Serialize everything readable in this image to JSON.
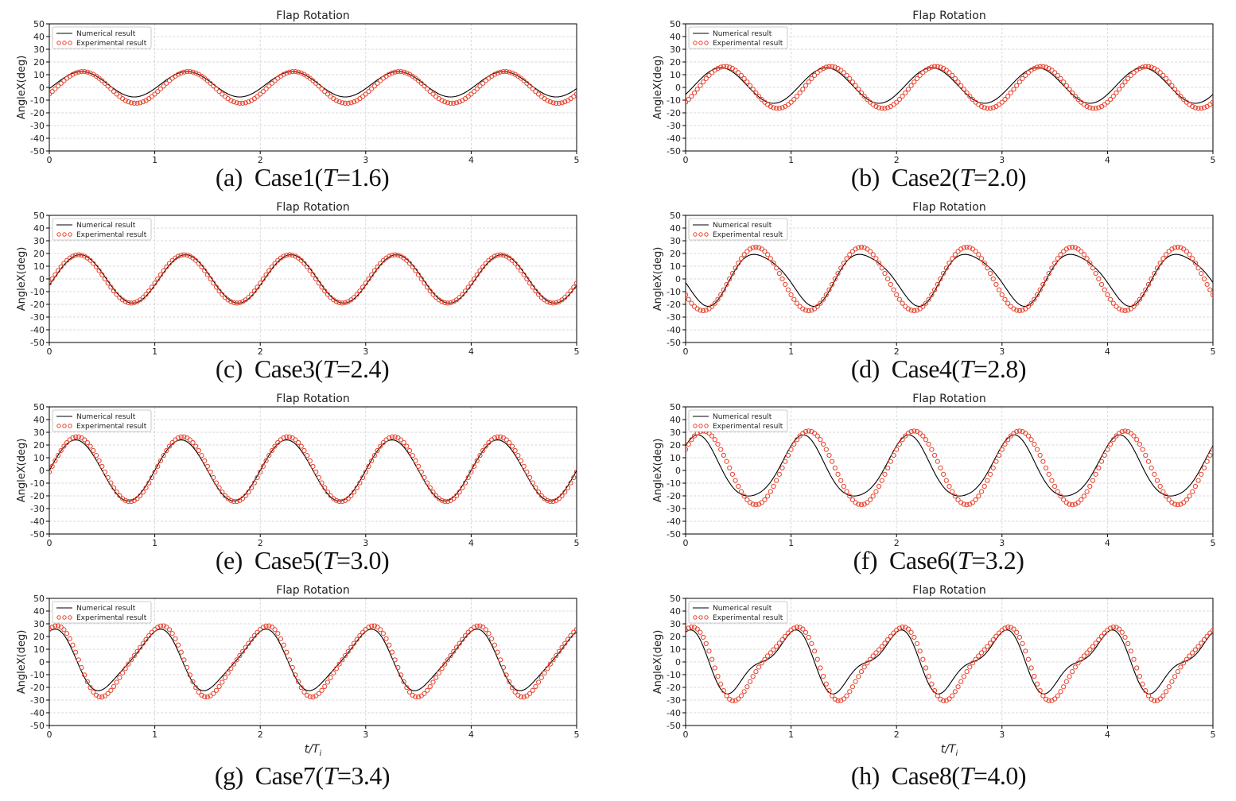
{
  "colors": {
    "numerical": "#000000",
    "experimental": "#e8412c",
    "grid": "#d9d9d9",
    "axis": "#000000"
  },
  "chart_data": [
    {
      "type": "line",
      "title": "Flap Rotation",
      "xlabel": "",
      "ylabel": "AngleX(deg)",
      "xlim": [
        0,
        5
      ],
      "ylim": [
        -50,
        50
      ],
      "xticks": [
        "0",
        "1",
        "2",
        "3",
        "4",
        "5"
      ],
      "yticks": [
        "50",
        "40",
        "30",
        "20",
        "10",
        "0",
        "-10",
        "-20",
        "-30",
        "-40",
        "-50"
      ],
      "legend": [
        "Numerical result",
        "Experimental result"
      ],
      "legend_loc": "top-left",
      "series": [
        {
          "name": "Numerical result",
          "amplitude": 10,
          "phase_deg": -20,
          "offset": 2.5,
          "harmonic2": 0,
          "harmonic2_phase_deg": 0
        },
        {
          "name": "Experimental result",
          "amplitude": 12.5,
          "phase_deg": -25,
          "offset": 0,
          "harmonic2": 0,
          "harmonic2_phase_deg": 0
        }
      ],
      "caption": {
        "letter": "(a)",
        "case": "Case1(",
        "tvar": "T",
        "tval": "=1.6)"
      }
    },
    {
      "type": "line",
      "title": "Flap Rotation",
      "xlabel": "",
      "ylabel": "AngleX(deg)",
      "xlim": [
        0,
        5
      ],
      "ylim": [
        -50,
        50
      ],
      "xticks": [
        "0",
        "1",
        "2",
        "3",
        "4",
        "5"
      ],
      "yticks": [
        "50",
        "40",
        "30",
        "20",
        "10",
        "0",
        "-10",
        "-20",
        "-30",
        "-40",
        "-50"
      ],
      "legend": [
        "Numerical result",
        "Experimental result"
      ],
      "legend_loc": "top-left",
      "series": [
        {
          "name": "Numerical result",
          "amplitude": 14,
          "phase_deg": -30,
          "offset": 1.5,
          "harmonic2": 0,
          "harmonic2_phase_deg": 0
        },
        {
          "name": "Experimental result",
          "amplitude": 16.5,
          "phase_deg": -45,
          "offset": 0,
          "harmonic2": 0,
          "harmonic2_phase_deg": 0
        }
      ],
      "caption": {
        "letter": "(b)",
        "case": "Case2(",
        "tvar": "T",
        "tval": "=2.0)"
      }
    },
    {
      "type": "line",
      "title": "Flap Rotation",
      "xlabel": "",
      "ylabel": "AngleX(deg)",
      "xlim": [
        0,
        5
      ],
      "ylim": [
        -50,
        50
      ],
      "xticks": [
        "0",
        "1",
        "2",
        "3",
        "4",
        "5"
      ],
      "yticks": [
        "50",
        "40",
        "30",
        "20",
        "10",
        "0",
        "-10",
        "-20",
        "-30",
        "-40",
        "-50"
      ],
      "legend": [
        "Numerical result",
        "Experimental result"
      ],
      "legend_loc": "top-left",
      "series": [
        {
          "name": "Numerical result",
          "amplitude": 19,
          "phase_deg": -15,
          "offset": 0,
          "harmonic2": 0,
          "harmonic2_phase_deg": 0
        },
        {
          "name": "Experimental result",
          "amplitude": 19,
          "phase_deg": -10,
          "offset": 0,
          "harmonic2": 0,
          "harmonic2_phase_deg": 0
        }
      ],
      "caption": {
        "letter": "(c)",
        "case": "Case3(",
        "tvar": "T",
        "tval": "=2.4)"
      }
    },
    {
      "type": "line",
      "title": "Flap Rotation",
      "xlabel": "",
      "ylabel": "AngleX(deg)",
      "xlim": [
        0,
        5
      ],
      "ylim": [
        -50,
        50
      ],
      "xticks": [
        "0",
        "1",
        "2",
        "3",
        "4",
        "5"
      ],
      "yticks": [
        "50",
        "40",
        "30",
        "20",
        "10",
        "0",
        "-10",
        "-20",
        "-30",
        "-40",
        "-50"
      ],
      "legend": [
        "Numerical result",
        "Experimental result"
      ],
      "legend_loc": "top-left",
      "series": [
        {
          "name": "Numerical result",
          "amplitude": 20,
          "phase_deg": -160,
          "offset": 1,
          "harmonic2": 3,
          "harmonic2_phase_deg": 90
        },
        {
          "name": "Experimental result",
          "amplitude": 25,
          "phase_deg": -150,
          "offset": 0,
          "harmonic2": 0,
          "harmonic2_phase_deg": 0
        }
      ],
      "caption": {
        "letter": "(d)",
        "case": "Case4(",
        "tvar": "T",
        "tval": "=2.8)"
      }
    },
    {
      "type": "line",
      "title": "Flap Rotation",
      "xlabel": "",
      "ylabel": "AngleX(deg)",
      "xlim": [
        0,
        5
      ],
      "ylim": [
        -50,
        50
      ],
      "xticks": [
        "0",
        "1",
        "2",
        "3",
        "4",
        "5"
      ],
      "yticks": [
        "50",
        "40",
        "30",
        "20",
        "10",
        "0",
        "-10",
        "-20",
        "-30",
        "-40",
        "-50"
      ],
      "legend": [
        "Numerical result",
        "Experimental result"
      ],
      "legend_loc": "top-left",
      "series": [
        {
          "name": "Numerical result",
          "amplitude": 24,
          "phase_deg": 0,
          "offset": 0,
          "harmonic2": 0,
          "harmonic2_phase_deg": 0
        },
        {
          "name": "Experimental result",
          "amplitude": 25.5,
          "phase_deg": -5,
          "offset": 1,
          "harmonic2": 0,
          "harmonic2_phase_deg": 0
        }
      ],
      "caption": {
        "letter": "(e)",
        "case": "Case5(",
        "tvar": "T",
        "tval": "=3.0)"
      }
    },
    {
      "type": "line",
      "title": "Flap Rotation",
      "xlabel": "",
      "ylabel": "AngleX(deg)",
      "xlim": [
        0,
        5
      ],
      "ylim": [
        -50,
        50
      ],
      "xticks": [
        "0",
        "1",
        "2",
        "3",
        "4",
        "5"
      ],
      "yticks": [
        "50",
        "40",
        "30",
        "20",
        "10",
        "0",
        "-10",
        "-20",
        "-30",
        "-40",
        "-50"
      ],
      "legend": [
        "Numerical result",
        "Experimental result"
      ],
      "legend_loc": "top-left",
      "series": [
        {
          "name": "Numerical result",
          "amplitude": 24,
          "phase_deg": 50,
          "offset": 1,
          "harmonic2": 3,
          "harmonic2_phase_deg": 0
        },
        {
          "name": "Experimental result",
          "amplitude": 29,
          "phase_deg": 30,
          "offset": 2,
          "harmonic2": 0,
          "harmonic2_phase_deg": 0
        }
      ],
      "caption": {
        "letter": "(f)",
        "case": "Case6(",
        "tvar": "T",
        "tval": "=3.2)"
      }
    },
    {
      "type": "line",
      "title": "Flap Rotation",
      "xlabel": "t/T",
      "xlabel_sub": "i",
      "ylabel": "AngleX(deg)",
      "xlim": [
        0,
        5
      ],
      "ylim": [
        -50,
        50
      ],
      "xticks": [
        "0",
        "1",
        "2",
        "3",
        "4",
        "5"
      ],
      "yticks": [
        "50",
        "40",
        "30",
        "20",
        "10",
        "0",
        "-10",
        "-20",
        "-30",
        "-40",
        "-50"
      ],
      "legend": [
        "Numerical result",
        "Experimental result"
      ],
      "legend_loc": "top-left",
      "series": [
        {
          "name": "Numerical result",
          "amplitude": 23,
          "phase_deg": 85,
          "offset": 1,
          "harmonic2": 4,
          "harmonic2_phase_deg": 0
        },
        {
          "name": "Experimental result",
          "amplitude": 27,
          "phase_deg": 80,
          "offset": 1,
          "harmonic2": 4,
          "harmonic2_phase_deg": -30
        }
      ],
      "caption": {
        "letter": "(g)",
        "case": "Case7(",
        "tvar": "T",
        "tval": "=3.4)"
      }
    },
    {
      "type": "line",
      "title": "Flap Rotation",
      "xlabel": "t/T",
      "xlabel_sub": "i",
      "ylabel": "AngleX(deg)",
      "xlim": [
        0,
        5
      ],
      "ylim": [
        -50,
        50
      ],
      "xticks": [
        "0",
        "1",
        "2",
        "3",
        "4",
        "5"
      ],
      "yticks": [
        "50",
        "40",
        "30",
        "20",
        "10",
        "0",
        "-10",
        "-20",
        "-30",
        "-40",
        "-50"
      ],
      "legend": [
        "Numerical result",
        "Experimental result"
      ],
      "legend_loc": "top-left",
      "series": [
        {
          "name": "Numerical result",
          "amplitude": 21,
          "phase_deg": 100,
          "offset": 0,
          "harmonic2": 8,
          "harmonic2_phase_deg": 20
        },
        {
          "name": "Experimental result",
          "amplitude": 27,
          "phase_deg": 90,
          "offset": 0,
          "harmonic2": 6,
          "harmonic2_phase_deg": -20
        }
      ],
      "caption": {
        "letter": "(h)",
        "case": "Case8(",
        "tvar": "T",
        "tval": "=4.0)"
      }
    }
  ]
}
